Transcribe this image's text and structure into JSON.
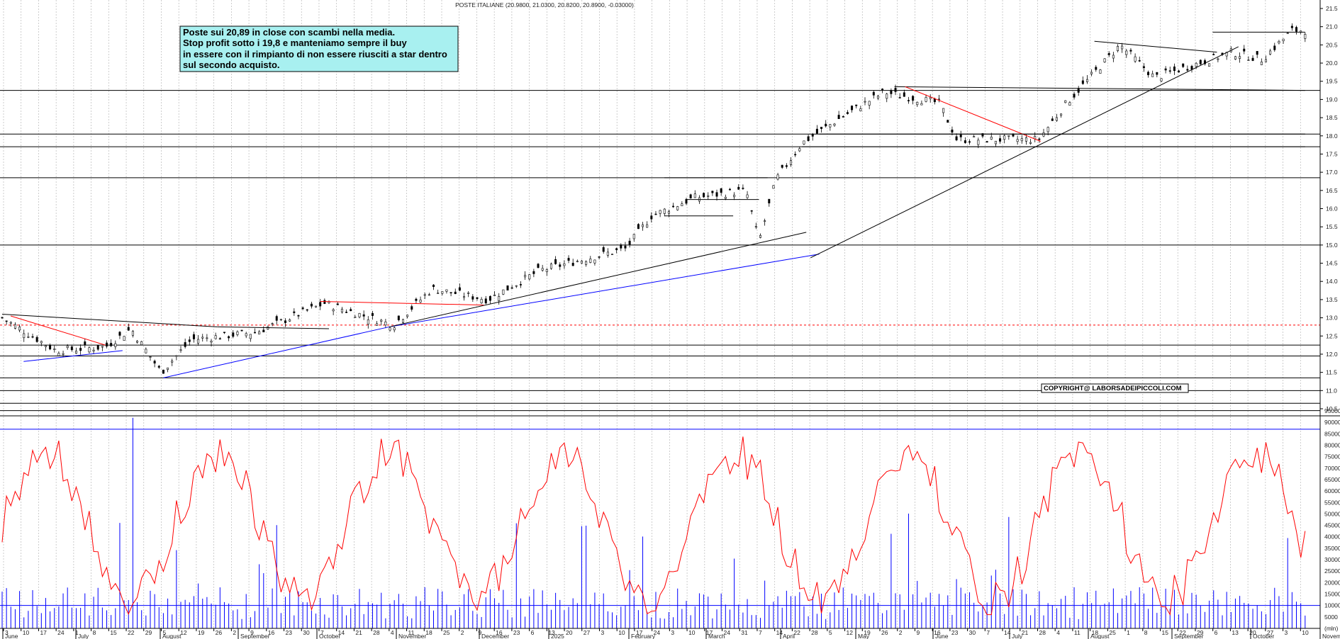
{
  "chart_data": {
    "type": "candlestick",
    "title": "POSTE ITALIANE (20.9800, 21.0300, 20.8200, 20.8900, -0.03000)",
    "annotation": {
      "lines": [
        "Poste sui 20,89 in close  con scambi nella media.",
        "Stop profit sotto i 19,8 e manteniamo sempre il buy",
        "in essere con il rimpianto di non essere riusciti a star dentro",
        "sul secondo acquisto."
      ]
    },
    "copyright": "COPYRIGHT@ LABORSADEIPICCOLI.COM",
    "price_axis": {
      "ylim": [
        10.5,
        21.5
      ],
      "ticks": [
        "21.5",
        "21.0",
        "20.5",
        "20.0",
        "19.5",
        "19.0",
        "18.5",
        "18.0",
        "17.5",
        "17.0",
        "16.5",
        "16.0",
        "15.5",
        "15.0",
        "14.5",
        "14.0",
        "13.5",
        "13.0",
        "12.5",
        "12.0",
        "11.5",
        "11.0",
        "10.5"
      ]
    },
    "volume_axis": {
      "ylim": [
        0,
        95000
      ],
      "ticks": [
        "95000",
        "90000",
        "85000",
        "80000",
        "75000",
        "70000",
        "65000",
        "60000",
        "55000",
        "50000",
        "45000",
        "40000",
        "35000",
        "30000",
        "25000",
        "20000",
        "15000",
        "10000",
        "5000"
      ],
      "unit": "(mln)"
    },
    "x_axis": {
      "date_ticks": [
        "3",
        "10",
        "17",
        "24",
        "1",
        "8",
        "15",
        "22",
        "29",
        "5",
        "12",
        "19",
        "26",
        "2",
        "9",
        "16",
        "23",
        "30",
        "7",
        "14",
        "21",
        "28",
        "4",
        "11",
        "18",
        "25",
        "2",
        "9",
        "16",
        "23",
        "6",
        "13",
        "20",
        "27",
        "3",
        "10",
        "17",
        "24",
        "3",
        "10",
        "17",
        "24",
        "31",
        "7",
        "14",
        "22",
        "28",
        "5",
        "12",
        "19",
        "26",
        "2",
        "9",
        "16",
        "23",
        "30",
        "7",
        "14",
        "21",
        "28",
        "4",
        "11",
        "18",
        "25",
        "1",
        "8",
        "15",
        "22",
        "29",
        "6",
        "13",
        "20",
        "27",
        "3",
        "10"
      ],
      "month_labels": [
        "June",
        "July",
        "August",
        "September",
        "October",
        "November",
        "December",
        "2025",
        "February",
        "March",
        "April",
        "May",
        "June",
        "July",
        "August",
        "September",
        "October",
        "November"
      ]
    },
    "horizontal_levels": [
      19.25,
      18.05,
      17.7,
      16.85,
      15.0,
      12.25,
      11.95,
      11.35,
      11.0,
      10.65,
      10.45
    ],
    "dashed_level": 12.8,
    "volume_reference_levels": [
      87000,
      10000
    ],
    "segments": [
      {
        "color": "#000000",
        "from": [
          0,
          13.1
        ],
        "to": [
          100,
          12.75
        ]
      },
      {
        "color": "#000000",
        "from": [
          100,
          12.75
        ],
        "to": [
          152,
          12.7
        ]
      },
      {
        "color": "#ff0000",
        "from": [
          4,
          13.05
        ],
        "to": [
          48,
          12.25
        ]
      },
      {
        "color": "#0000ff",
        "from": [
          10,
          11.8
        ],
        "to": [
          56,
          12.1
        ]
      },
      {
        "color": "#0000ff",
        "from": [
          75,
          11.35
        ],
        "to": [
          180,
          12.75
        ]
      },
      {
        "color": "#0000ff",
        "from": [
          180,
          12.75
        ],
        "to": [
          380,
          14.75
        ]
      },
      {
        "color": "#000000",
        "from": [
          180,
          12.75
        ],
        "to": [
          374,
          15.35
        ]
      },
      {
        "color": "#000000",
        "from": [
          376,
          14.65
        ],
        "to": [
          575,
          20.45
        ]
      },
      {
        "color": "#000000",
        "from": [
          508,
          20.6
        ],
        "to": [
          565,
          20.3
        ]
      },
      {
        "color": "#000000",
        "from": [
          563,
          20.85
        ],
        "to": [
          606,
          20.85
        ]
      },
      {
        "color": "#000000",
        "from": [
          415,
          19.35
        ],
        "to": [
          606,
          19.25
        ]
      },
      {
        "color": "#ff0000",
        "from": [
          420,
          19.35
        ],
        "to": [
          483,
          17.85
        ]
      },
      {
        "color": "#ff0000",
        "from": [
          148,
          13.45
        ],
        "to": [
          224,
          13.35
        ]
      },
      {
        "color": "#000000",
        "from": [
          308,
          16.85
        ],
        "to": [
          356,
          16.85
        ]
      },
      {
        "color": "#000000",
        "from": [
          318,
          16.25
        ],
        "to": [
          352,
          16.25
        ]
      },
      {
        "color": "#000000",
        "from": [
          308,
          15.8
        ],
        "to": [
          340,
          15.8
        ]
      },
      {
        "color": "#000000",
        "from": [
          372,
          17.7
        ],
        "to": [
          606,
          17.7
        ]
      },
      {
        "color": "#000000",
        "from": [
          380,
          18.05
        ],
        "to": [
          606,
          18.05
        ]
      }
    ]
  }
}
